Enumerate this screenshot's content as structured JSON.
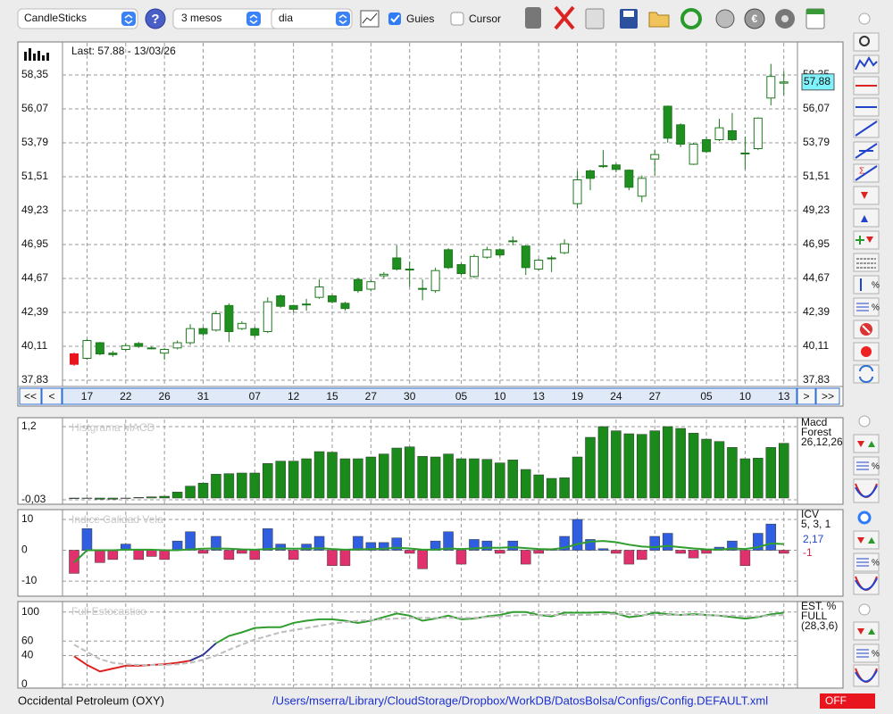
{
  "toolbar": {
    "chart_style": "CandleSticks",
    "period": "3 mesos",
    "interval": "dia",
    "guides": "Guies",
    "cursor": "Cursor"
  },
  "nav": {
    "first": "<<",
    "prev": "<",
    "next": ">",
    "last": ">>"
  },
  "status": {
    "company": "Occidental Petroleum (OXY)",
    "config_path": "/Users/mserra/Library/CloudStorage/Dropbox/WorkDB/DatosBolsa/Configs/Config.DEFAULT.xml",
    "state": "OFF"
  },
  "chart_data": [
    {
      "type": "candlestick",
      "title": "Last: 57.88 - 13/03/26",
      "last_label": "57,88",
      "categories": [
        null,
        "17",
        null,
        null,
        "22",
        null,
        null,
        "26",
        null,
        null,
        "31",
        null,
        null,
        null,
        "07",
        null,
        null,
        "12",
        null,
        null,
        "15",
        null,
        null,
        "27",
        null,
        null,
        "30",
        null,
        null,
        null,
        "05",
        null,
        null,
        "10",
        null,
        null,
        "13",
        null,
        null,
        "19",
        null,
        null,
        "24",
        null,
        null,
        "27",
        null,
        null,
        null,
        "05",
        null,
        null,
        "10",
        null,
        null,
        "13"
      ],
      "open": [
        39.6,
        39.3,
        40.35,
        39.65,
        39.9,
        40.3,
        40.0,
        39.65,
        40.0,
        40.35,
        41.3,
        41.2,
        42.85,
        41.3,
        41.3,
        41.1,
        43.5,
        42.85,
        42.9,
        43.4,
        43.5,
        43.0,
        44.6,
        43.95,
        44.85,
        46.05,
        45.3,
        44.0,
        43.85,
        46.6,
        45.6,
        44.8,
        46.1,
        46.6,
        47.2,
        46.85,
        45.3,
        46.0,
        46.4,
        49.7,
        51.9,
        52.25,
        52.3,
        51.95,
        50.2,
        52.7,
        56.25,
        55.0,
        52.35,
        54.0,
        54.0,
        54.6,
        53.1,
        53.4,
        56.8,
        57.8
      ],
      "high": [
        39.7,
        40.6,
        40.4,
        39.8,
        40.3,
        40.4,
        40.1,
        40.0,
        40.5,
        41.6,
        41.4,
        42.5,
        43.0,
        41.8,
        41.4,
        43.4,
        43.6,
        42.9,
        43.3,
        44.6,
        43.6,
        43.1,
        44.7,
        44.6,
        45.1,
        46.9,
        45.8,
        44.6,
        45.4,
        46.7,
        45.7,
        46.3,
        46.8,
        46.7,
        47.5,
        46.9,
        46.0,
        46.2,
        47.3,
        51.9,
        52.0,
        53.3,
        52.4,
        52.0,
        51.6,
        53.3,
        56.3,
        55.1,
        53.8,
        54.2,
        55.4,
        55.8,
        54.2,
        55.5,
        59.1,
        58.6
      ],
      "low": [
        38.8,
        39.2,
        39.5,
        39.4,
        39.8,
        40.0,
        39.9,
        39.2,
        39.9,
        40.2,
        40.8,
        41.1,
        40.4,
        41.2,
        40.7,
        41.0,
        42.7,
        42.4,
        42.5,
        43.3,
        43.0,
        42.5,
        43.7,
        43.8,
        44.7,
        45.2,
        44.1,
        43.2,
        43.7,
        45.3,
        44.9,
        44.7,
        46.0,
        46.1,
        46.9,
        44.9,
        45.2,
        45.1,
        46.3,
        49.4,
        50.6,
        52.1,
        51.8,
        50.6,
        49.8,
        51.6,
        53.8,
        53.5,
        52.3,
        53.1,
        53.9,
        53.9,
        52.0,
        53.3,
        56.3,
        57.0
      ],
      "close": [
        38.9,
        40.5,
        39.6,
        39.55,
        40.15,
        40.1,
        39.95,
        39.9,
        40.35,
        41.3,
        40.95,
        42.3,
        41.1,
        41.65,
        40.85,
        43.1,
        42.8,
        42.6,
        42.95,
        44.1,
        43.1,
        42.65,
        43.85,
        44.45,
        44.95,
        45.3,
        45.25,
        43.95,
        45.2,
        45.4,
        45.0,
        46.15,
        46.6,
        46.25,
        47.15,
        45.4,
        45.9,
        46.05,
        47.0,
        51.3,
        51.4,
        52.2,
        52.0,
        50.8,
        51.4,
        53.0,
        54.1,
        53.7,
        53.7,
        53.2,
        54.8,
        54.0,
        53.05,
        55.45,
        58.25,
        57.88
      ],
      "colors": {
        "up": "#ffffff",
        "down": "#1f8f1f",
        "edge": "#1f7a1f",
        "first": "#e8141e"
      },
      "ylim": [
        37.47,
        60.51
      ],
      "yticks": [
        {
          "value": 58.35,
          "label": "58,35"
        },
        {
          "value": 56.07,
          "label": "56,07"
        },
        {
          "value": 53.79,
          "label": "53,79"
        },
        {
          "value": 51.51,
          "label": "51,51"
        },
        {
          "value": 49.23,
          "label": "49,23"
        },
        {
          "value": 46.95,
          "label": "46,95"
        },
        {
          "value": 44.67,
          "label": "44,67"
        },
        {
          "value": 42.39,
          "label": "42,39"
        },
        {
          "value": 40.11,
          "label": "40,11"
        },
        {
          "value": 37.83,
          "label": "37,83"
        }
      ],
      "grid": true
    },
    {
      "type": "bar",
      "title": "Histgrama MACD",
      "legend_lines": [
        "Macd",
        "Forest",
        "26,12,26"
      ],
      "color": "#1a8a1a",
      "values": [
        -0.01,
        0,
        -0.02,
        -0.02,
        0,
        0.01,
        0.02,
        0.03,
        0.1,
        0.2,
        0.25,
        0.4,
        0.41,
        0.42,
        0.42,
        0.58,
        0.62,
        0.62,
        0.66,
        0.78,
        0.77,
        0.66,
        0.66,
        0.69,
        0.74,
        0.84,
        0.86,
        0.7,
        0.69,
        0.74,
        0.66,
        0.66,
        0.65,
        0.59,
        0.64,
        0.48,
        0.39,
        0.33,
        0.34,
        0.69,
        1.02,
        1.2,
        1.13,
        1.08,
        1.07,
        1.13,
        1.2,
        1.17,
        1.09,
        0.99,
        0.95,
        0.85,
        0.66,
        0.67,
        0.85,
        0.92
      ],
      "ylim": [
        -0.105,
        1.32
      ],
      "yticks": [
        {
          "value": 1.2,
          "label": "1,2"
        },
        {
          "value": -0.03,
          "label": "-0,03"
        }
      ]
    },
    {
      "type": "bar",
      "title": "Indice Calidad Vela",
      "legend_lines": [
        "ICV",
        "5, 3, 1"
      ],
      "legend_values": [
        {
          "text": "2,17",
          "color": "#2244cc"
        },
        {
          "text": "-1",
          "color": "#cc2244"
        }
      ],
      "positive_color": "#2f5fe0",
      "negative_color": "#e0306e",
      "values": [
        -7.5,
        7,
        -4,
        -3,
        2,
        -3,
        -2,
        -3,
        3,
        6,
        -1,
        4.5,
        -3,
        -1,
        -3,
        7,
        2,
        -3,
        2,
        4.5,
        -5,
        -5,
        4.5,
        2.5,
        2.5,
        4,
        -1,
        -6,
        3,
        6,
        -4.5,
        3.5,
        3,
        -1,
        3,
        -4.5,
        -1,
        0.5,
        4.5,
        10,
        3.5,
        0.5,
        -1,
        -4.5,
        -3,
        4.5,
        5.5,
        -1,
        -2.5,
        -1,
        1,
        3,
        -5,
        5.5,
        8.5,
        -1
      ],
      "signal": {
        "color": "#2f9e2f",
        "values": [
          -4,
          0,
          0,
          0,
          0.2,
          0.2,
          0.2,
          0,
          0,
          0.3,
          0.5,
          0.6,
          0.5,
          0.3,
          0.2,
          0.4,
          0.6,
          0.5,
          0.5,
          0.7,
          0.4,
          0.2,
          0.3,
          0.4,
          0.5,
          0.8,
          0.6,
          0.2,
          0.2,
          0.6,
          0.4,
          0.6,
          0.8,
          0.8,
          1.0,
          0.7,
          0.4,
          0.3,
          0.8,
          2.0,
          2.8,
          3.0,
          2.6,
          1.8,
          1.2,
          1.0,
          1.4,
          1.0,
          0.6,
          0.3,
          0.2,
          0.6,
          0.4,
          1.0,
          2.2,
          2.0
        ]
      },
      "ylim": [
        -14.9,
        12.6
      ],
      "yticks": [
        10,
        0,
        -10
      ]
    },
    {
      "type": "line",
      "title": "Full Estocastico",
      "legend_lines": [
        "EST. %",
        "FULL",
        "(28,3,6)"
      ],
      "series": [
        {
          "colors": [
            "#e0201e",
            "#2c3592",
            "#2f9e2f"
          ],
          "values": [
            39,
            27,
            18,
            22,
            26,
            26,
            27,
            28,
            30,
            33,
            41,
            57,
            67,
            72,
            78,
            79,
            79,
            85,
            88,
            90,
            90,
            88,
            85,
            88,
            93,
            98,
            95,
            88,
            91,
            95,
            90,
            91,
            94,
            96,
            100,
            100,
            96,
            94,
            99,
            99,
            99,
            100,
            98,
            93,
            95,
            99,
            97,
            96,
            97,
            96,
            95,
            93,
            91,
            93,
            97,
            99
          ]
        },
        {
          "color": "#bdbdbd",
          "dashed": true,
          "values": [
            55,
            45,
            35,
            30,
            28,
            27,
            27,
            27,
            28,
            30,
            34,
            40,
            48,
            55,
            62,
            67,
            72,
            75,
            78,
            81,
            84,
            86,
            88,
            89,
            90,
            91,
            92,
            92,
            92,
            92,
            92,
            92,
            93,
            94,
            95,
            96,
            96,
            96,
            96,
            96,
            96,
            97,
            97,
            97,
            96,
            96,
            96,
            96,
            96,
            96,
            95,
            95,
            94,
            94,
            95,
            96
          ]
        }
      ],
      "ylim": [
        -3.7,
        112
      ],
      "yticks": [
        100,
        60,
        40,
        0
      ]
    }
  ]
}
